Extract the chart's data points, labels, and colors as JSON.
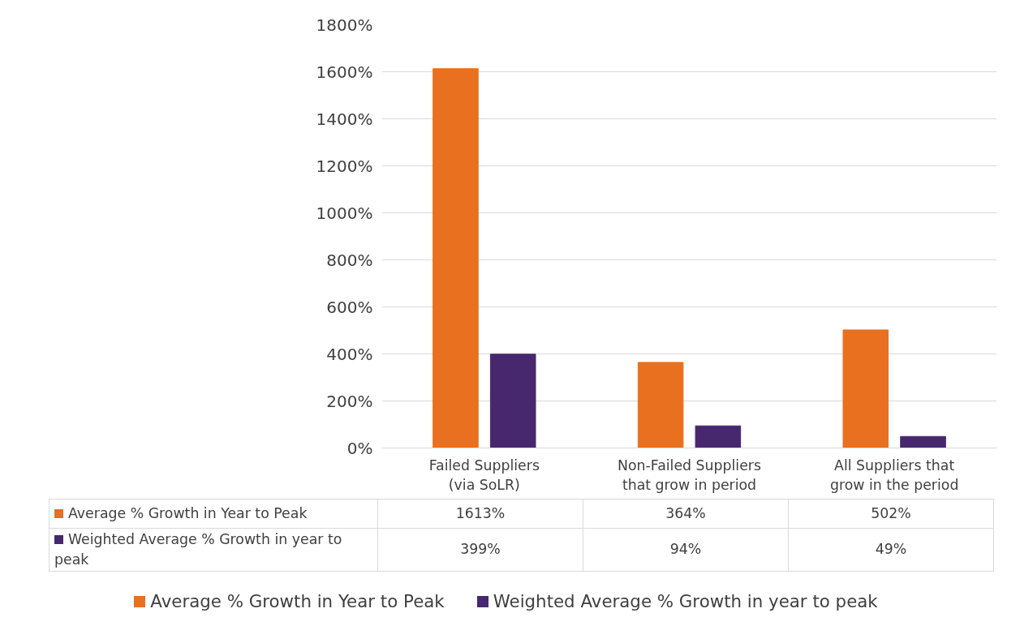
{
  "chart_data": {
    "type": "bar",
    "categories": [
      "Failed Suppliers (via SoLR)",
      "Non-Failed Suppliers that grow in period",
      "All Suppliers that grow in the period"
    ],
    "series": [
      {
        "name": "Average % Growth in Year to Peak",
        "color": "#e8701f",
        "values": [
          1613,
          364,
          502
        ],
        "value_labels": [
          "1613%",
          "364%",
          "502%"
        ]
      },
      {
        "name": "Weighted Average % Growth in year to peak",
        "color": "#47286f",
        "values": [
          399,
          94,
          49
        ],
        "value_labels": [
          "399%",
          "94%",
          "49%"
        ]
      }
    ],
    "ylim": [
      0,
      1800
    ],
    "yticks": [
      {
        "value": 0,
        "label": "0%"
      },
      {
        "value": 200,
        "label": "200%"
      },
      {
        "value": 400,
        "label": "400%"
      },
      {
        "value": 600,
        "label": "600%"
      },
      {
        "value": 800,
        "label": "800%"
      },
      {
        "value": 1000,
        "label": "1000%"
      },
      {
        "value": 1200,
        "label": "1200%"
      },
      {
        "value": 1400,
        "label": "1400%"
      },
      {
        "value": 1600,
        "label": "1600%"
      },
      {
        "value": 1800,
        "label": "1800%"
      }
    ],
    "grid": "y",
    "legend": "bottom"
  }
}
